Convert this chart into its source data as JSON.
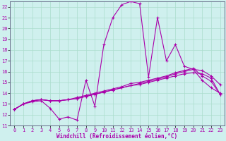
{
  "xlabel": "Windchill (Refroidissement éolien,°C)",
  "background_color": "#cff0ee",
  "grid_color": "#aaddcc",
  "line_color": "#aa00aa",
  "xlim": [
    -0.5,
    23.5
  ],
  "ylim": [
    11,
    22.5
  ],
  "xticks": [
    0,
    1,
    2,
    3,
    4,
    5,
    6,
    7,
    8,
    9,
    10,
    11,
    12,
    13,
    14,
    15,
    16,
    17,
    18,
    19,
    20,
    21,
    22,
    23
  ],
  "yticks": [
    11,
    12,
    13,
    14,
    15,
    16,
    17,
    18,
    19,
    20,
    21,
    22
  ],
  "curve1_x": [
    0,
    1,
    2,
    3,
    4,
    5,
    6,
    7,
    8,
    9,
    10,
    11,
    12,
    13,
    14,
    15,
    16,
    17,
    18,
    19,
    20,
    21,
    22,
    23
  ],
  "curve1_y": [
    12.5,
    13.0,
    13.2,
    13.3,
    12.6,
    11.6,
    11.8,
    11.5,
    15.2,
    12.8,
    18.5,
    21.0,
    22.2,
    22.5,
    22.3,
    15.5,
    21.0,
    17.0,
    18.5,
    16.5,
    16.2,
    15.2,
    14.5,
    14.0
  ],
  "curve2_x": [
    0,
    1,
    2,
    3,
    4,
    5,
    6,
    7,
    8,
    9,
    10,
    11,
    12,
    13,
    14,
    15,
    16,
    17,
    18,
    19,
    20,
    21,
    22,
    23
  ],
  "curve2_y": [
    12.5,
    13.0,
    13.3,
    13.4,
    13.3,
    13.3,
    13.4,
    13.5,
    13.7,
    13.9,
    14.1,
    14.3,
    14.5,
    14.7,
    14.9,
    15.1,
    15.3,
    15.5,
    15.8,
    16.0,
    16.2,
    16.1,
    15.6,
    14.8
  ],
  "curve3_x": [
    0,
    1,
    2,
    3,
    4,
    5,
    6,
    7,
    8,
    9,
    10,
    11,
    12,
    13,
    14,
    15,
    16,
    17,
    18,
    19,
    20,
    21,
    22,
    23
  ],
  "curve3_y": [
    12.5,
    13.0,
    13.3,
    13.4,
    13.3,
    13.3,
    13.4,
    13.5,
    13.7,
    13.9,
    14.1,
    14.3,
    14.5,
    14.7,
    14.8,
    15.0,
    15.2,
    15.4,
    15.6,
    15.8,
    15.9,
    15.8,
    15.4,
    13.9
  ],
  "curve4_x": [
    0,
    1,
    2,
    3,
    4,
    5,
    6,
    7,
    8,
    9,
    10,
    11,
    12,
    13,
    14,
    15,
    16,
    17,
    18,
    19,
    20,
    21,
    22,
    23
  ],
  "curve4_y": [
    12.5,
    13.0,
    13.3,
    13.4,
    13.3,
    13.3,
    13.4,
    13.6,
    13.8,
    14.0,
    14.2,
    14.4,
    14.6,
    14.9,
    15.0,
    15.2,
    15.4,
    15.6,
    15.9,
    16.1,
    16.3,
    15.6,
    15.1,
    13.9
  ],
  "tick_fontsize": 5.0,
  "xlabel_fontsize": 5.5
}
